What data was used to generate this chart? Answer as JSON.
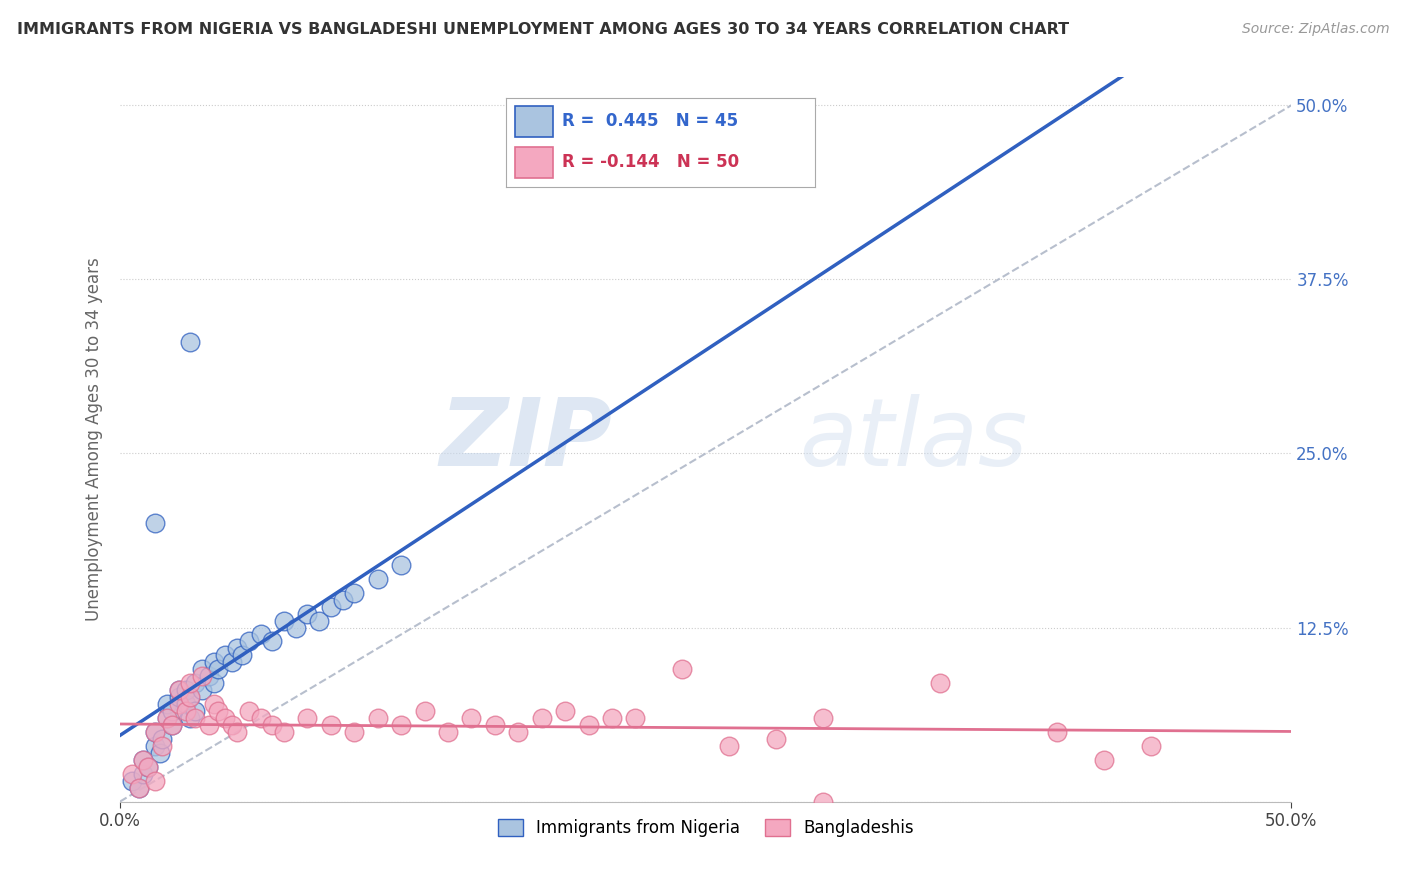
{
  "title": "IMMIGRANTS FROM NIGERIA VS BANGLADESHI UNEMPLOYMENT AMONG AGES 30 TO 34 YEARS CORRELATION CHART",
  "source": "Source: ZipAtlas.com",
  "ylabel": "Unemployment Among Ages 30 to 34 years",
  "xlim": [
    0,
    0.5
  ],
  "ylim": [
    0,
    0.52
  ],
  "nigeria_R": 0.445,
  "nigeria_N": 45,
  "bangladeshi_R": -0.144,
  "bangladeshi_N": 50,
  "background_color": "#ffffff",
  "grid_color": "#cccccc",
  "nigeria_color": "#aac4e0",
  "bangladeshi_color": "#f4a8c0",
  "nigeria_line_color": "#3060c0",
  "bangladeshi_line_color": "#e07090",
  "trend_line_color": "#b0b8c8",
  "watermark_zip": "ZIP",
  "watermark_atlas": "atlas",
  "legend_labels": [
    "Immigrants from Nigeria",
    "Bangladeshis"
  ],
  "nigeria_scatter_x": [
    0.005,
    0.008,
    0.01,
    0.01,
    0.012,
    0.015,
    0.015,
    0.017,
    0.018,
    0.02,
    0.02,
    0.022,
    0.022,
    0.025,
    0.025,
    0.028,
    0.028,
    0.03,
    0.03,
    0.032,
    0.032,
    0.035,
    0.035,
    0.038,
    0.04,
    0.04,
    0.042,
    0.045,
    0.048,
    0.05,
    0.052,
    0.055,
    0.06,
    0.065,
    0.07,
    0.075,
    0.08,
    0.085,
    0.09,
    0.095,
    0.1,
    0.11,
    0.12,
    0.03,
    0.015
  ],
  "nigeria_scatter_y": [
    0.015,
    0.01,
    0.02,
    0.03,
    0.025,
    0.04,
    0.05,
    0.035,
    0.045,
    0.06,
    0.07,
    0.055,
    0.065,
    0.075,
    0.08,
    0.07,
    0.08,
    0.06,
    0.075,
    0.065,
    0.085,
    0.08,
    0.095,
    0.09,
    0.085,
    0.1,
    0.095,
    0.105,
    0.1,
    0.11,
    0.105,
    0.115,
    0.12,
    0.115,
    0.13,
    0.125,
    0.135,
    0.13,
    0.14,
    0.145,
    0.15,
    0.16,
    0.17,
    0.33,
    0.2
  ],
  "bangladeshi_scatter_x": [
    0.005,
    0.008,
    0.01,
    0.012,
    0.015,
    0.015,
    0.018,
    0.02,
    0.022,
    0.025,
    0.025,
    0.028,
    0.03,
    0.03,
    0.032,
    0.035,
    0.038,
    0.04,
    0.042,
    0.045,
    0.048,
    0.05,
    0.055,
    0.06,
    0.065,
    0.07,
    0.08,
    0.09,
    0.1,
    0.11,
    0.12,
    0.13,
    0.14,
    0.15,
    0.16,
    0.17,
    0.18,
    0.19,
    0.2,
    0.21,
    0.22,
    0.24,
    0.26,
    0.28,
    0.3,
    0.35,
    0.4,
    0.42,
    0.44,
    0.3
  ],
  "bangladeshi_scatter_y": [
    0.02,
    0.01,
    0.03,
    0.025,
    0.015,
    0.05,
    0.04,
    0.06,
    0.055,
    0.07,
    0.08,
    0.065,
    0.075,
    0.085,
    0.06,
    0.09,
    0.055,
    0.07,
    0.065,
    0.06,
    0.055,
    0.05,
    0.065,
    0.06,
    0.055,
    0.05,
    0.06,
    0.055,
    0.05,
    0.06,
    0.055,
    0.065,
    0.05,
    0.06,
    0.055,
    0.05,
    0.06,
    0.065,
    0.055,
    0.06,
    0.06,
    0.095,
    0.04,
    0.045,
    0.0,
    0.085,
    0.05,
    0.03,
    0.04,
    0.06
  ]
}
